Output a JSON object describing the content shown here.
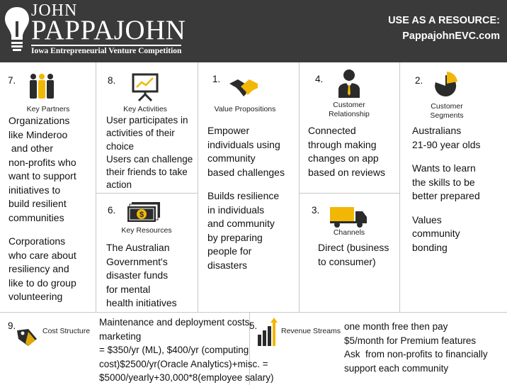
{
  "header": {
    "logo_first": "JOHN",
    "logo_last": "PAPPAJOHN",
    "logo_subtitle": "Iowa Entrepreneurial Venture Competition",
    "resource_label": "USE AS A RESOURCE:",
    "resource_url": "PappajohnEVC.com"
  },
  "icons": {
    "logo": "lightbulb-icon",
    "key_partners": "people-icon",
    "key_activities": "presentation-board-icon",
    "value_propositions": "handshake-icon",
    "customer_relationship": "businessman-icon",
    "customer_segments": "pie-chart-icon",
    "key_resources": "money-stack-icon",
    "channels": "truck-icon",
    "cost_structure": "price-tag-icon",
    "revenue_streams": "bar-chart-arrow-icon"
  },
  "colors": {
    "accent": "#f2b705",
    "header_bg": "#3a3a3a",
    "icon_dark": "#2b2b2b"
  },
  "sections": {
    "key_partners": {
      "number": "7.",
      "title": "Key Partners",
      "lines": [
        "Organizations",
        "like Minderoo",
        " and other",
        "non-profits who",
        "want to support",
        "initiatives to",
        "build resilient",
        "communities",
        "",
        "Corporations",
        "who care about",
        "resiliency and",
        "like to do group",
        "volunteering"
      ]
    },
    "key_activities": {
      "number": "8.",
      "title": "Key Activities",
      "lines": [
        "User participates in",
        "activities of their",
        "choice",
        "Users can challenge",
        "their friends to take",
        "action"
      ]
    },
    "key_resources": {
      "number": "6.",
      "title": "Key Resources",
      "lines": [
        "The Australian",
        "Government's",
        "disaster funds",
        "for mental",
        "health initiatives"
      ]
    },
    "value_propositions": {
      "number": "1.",
      "title": "Value Propositions",
      "lines": [
        "Empower",
        "individuals using",
        "community",
        "based challenges",
        "",
        "Builds resilience",
        "in individuals",
        "and community",
        "by preparing",
        "people for",
        "disasters"
      ]
    },
    "customer_relationship": {
      "number": "4.",
      "title_1": "Customer",
      "title_2": "Relationship",
      "lines": [
        "Connected",
        "through making",
        "changes on app",
        "based on reviews"
      ]
    },
    "channels": {
      "number": "3.",
      "title": "Channels",
      "lines": [
        "Direct (business",
        "to consumer)"
      ]
    },
    "customer_segments": {
      "number": "2.",
      "title_1": "Customer",
      "title_2": "Segments",
      "lines": [
        "Australians",
        "21-90 year olds",
        "",
        "Wants to learn",
        "the skills to be",
        "better prepared",
        "",
        "Values",
        "community",
        "bonding"
      ]
    },
    "cost_structure": {
      "number": "9.",
      "title": "Cost Structure",
      "lines": [
        "Maintenance and deployment costs,",
        "marketing",
        "= $350/yr (ML), $400/yr (computing",
        "cost)$2500/yr(Oracle Analytics)+misc. =",
        "$5000/yearly+30,000*8(employee salary)"
      ]
    },
    "revenue_streams": {
      "number": "5.",
      "title": "Revenue Streams",
      "lines": [
        "one month free then pay",
        "$5/month for Premium features",
        "Ask  from non-profits to financially",
        "support each community"
      ]
    }
  }
}
